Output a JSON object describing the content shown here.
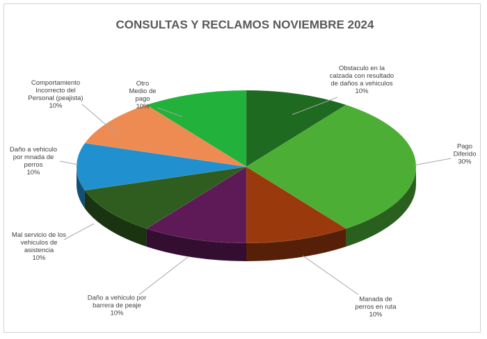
{
  "chart_data": {
    "type": "pie",
    "title": "CONSULTAS Y RECLAMOS NOVIEMBRE 2024",
    "categories": [
      "Obstaculo en la calzada con resultado de daños a vehiculos",
      "Pago Diferido",
      "Manada de perros en ruta",
      "Daño a vehiculo por barrera de peaje",
      "Mal servicio de los vehiculos de asistencia",
      "Daño a vehiculo por mnada de perros",
      "Comportamiento Incorrecto del Personal (peajista)",
      "Otro Medio de pago"
    ],
    "values": [
      10,
      30,
      10,
      10,
      10,
      10,
      10,
      10
    ],
    "value_labels": [
      "10%",
      "30%",
      "10%",
      "10%",
      "10%",
      "10%",
      "10%",
      "10%"
    ],
    "colors": [
      "#1d6a20",
      "#4cae34",
      "#9a3a0c",
      "#5e1a57",
      "#2f5d1f",
      "#2190cf",
      "#ee8b52",
      "#22b13a"
    ]
  }
}
